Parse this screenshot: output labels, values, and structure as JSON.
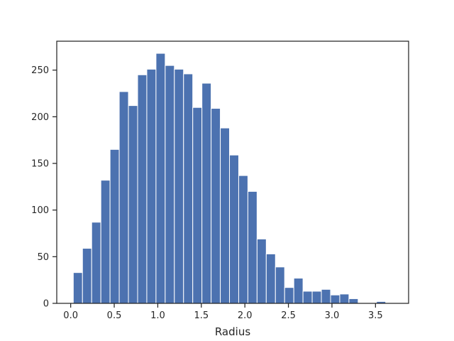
{
  "chart_data": {
    "type": "bar",
    "title": "",
    "xlabel": "Radius",
    "ylabel": "",
    "grid": false,
    "legend": "none",
    "bar_color": "#4c72b0",
    "edge_color": "#ffffff",
    "axis_color": "#262626",
    "bin_start": 0.03,
    "bin_width": 0.1055,
    "values": [
      33,
      59,
      87,
      132,
      165,
      227,
      212,
      245,
      251,
      268,
      255,
      251,
      246,
      210,
      236,
      209,
      188,
      159,
      137,
      120,
      69,
      53,
      39,
      17,
      27,
      13,
      13,
      15,
      9,
      10,
      5,
      0,
      0,
      2
    ],
    "xlim": [
      -0.16,
      3.88
    ],
    "ylim": [
      0,
      281
    ],
    "xticks": [
      0.0,
      0.5,
      1.0,
      1.5,
      2.0,
      2.5,
      3.0,
      3.5
    ],
    "xtick_labels": [
      "0.0",
      "0.5",
      "1.0",
      "1.5",
      "2.0",
      "2.5",
      "3.0",
      "3.5"
    ],
    "yticks": [
      0,
      50,
      100,
      150,
      200,
      250
    ],
    "ytick_labels": [
      "0",
      "50",
      "100",
      "150",
      "200",
      "250"
    ]
  }
}
